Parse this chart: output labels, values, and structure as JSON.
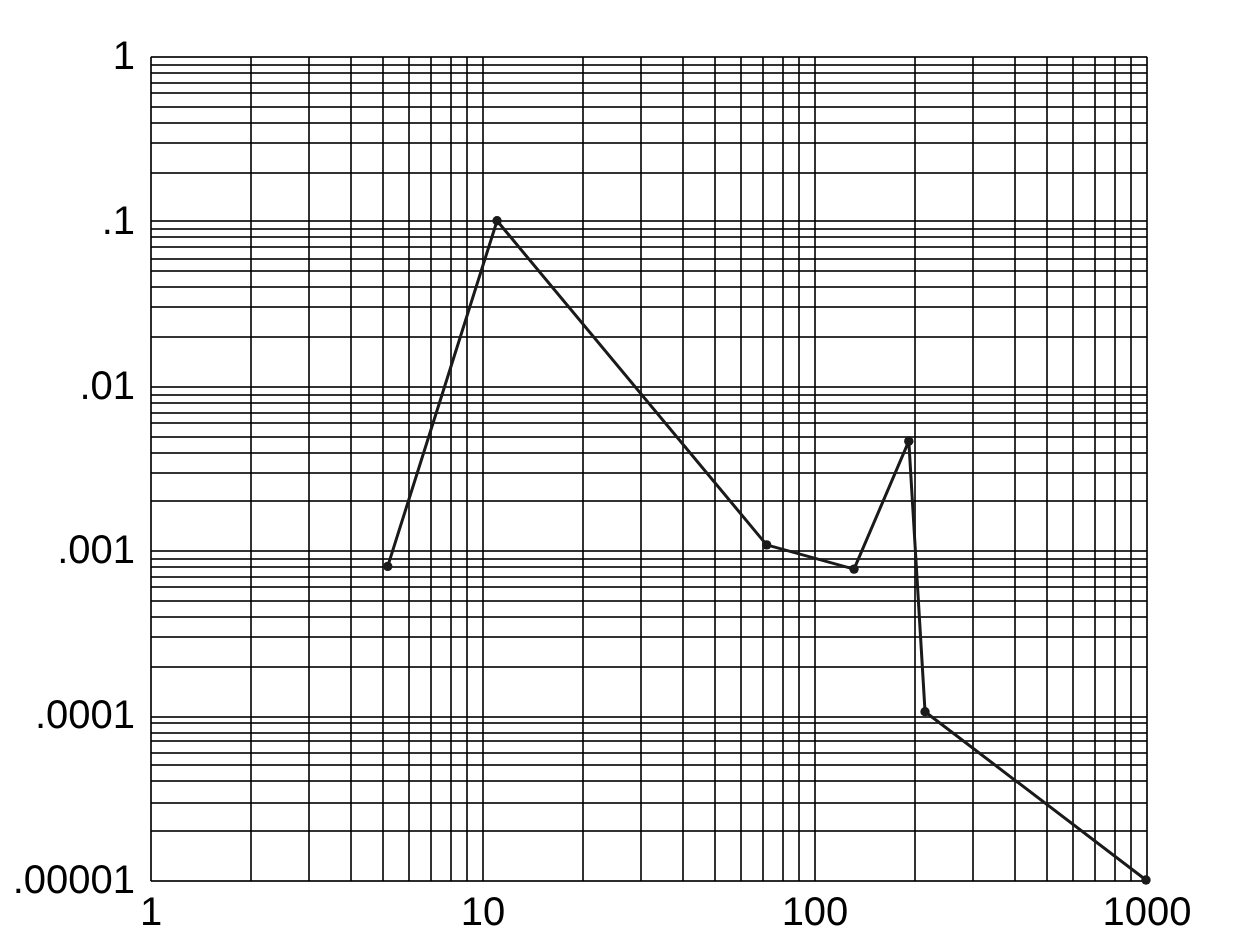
{
  "chart_data": {
    "type": "line",
    "log": "xy",
    "grid": true,
    "marker": "circle",
    "line_style": "solid",
    "x": [
      5.2,
      11.1,
      72,
      132,
      193,
      216,
      1000
    ],
    "series": [
      {
        "color": "#1a1a1a",
        "values": [
          0.0008,
          0.1,
          0.00108,
          0.00077,
          0.0046,
          0.000105,
          1e-05
        ]
      }
    ],
    "xlim": [
      1,
      1000
    ],
    "xticks": [
      1,
      {
        "value": 2,
        "label": null
      },
      {
        "value": 3,
        "label": null
      },
      {
        "value": 4,
        "label": null
      },
      {
        "value": 5,
        "label": null
      },
      {
        "value": 6,
        "label": null
      },
      {
        "value": 7,
        "label": null
      },
      {
        "value": 8,
        "label": null
      },
      {
        "value": 9,
        "label": null
      },
      10,
      {
        "value": 20,
        "label": null
      },
      {
        "value": 30,
        "label": null
      },
      {
        "value": 40,
        "label": null
      },
      {
        "value": 50,
        "label": null
      },
      {
        "value": 60,
        "label": null
      },
      {
        "value": 70,
        "label": null
      },
      {
        "value": 80,
        "label": null
      },
      {
        "value": 90,
        "label": null
      },
      100,
      {
        "value": 200,
        "label": null
      },
      {
        "value": 300,
        "label": null
      },
      {
        "value": 400,
        "label": null
      },
      {
        "value": 500,
        "label": null
      },
      {
        "value": 600,
        "label": null
      },
      {
        "value": 700,
        "label": null
      },
      {
        "value": 800,
        "label": null
      },
      {
        "value": 900,
        "label": null
      },
      1000
    ],
    "ylim": [
      1e-05,
      1
    ],
    "yticks": [
      {
        "value": 1e-05,
        "label": ".00001"
      },
      {
        "value": 2e-05,
        "label": null
      },
      {
        "value": 3e-05,
        "label": null
      },
      {
        "value": 4e-05,
        "label": null
      },
      {
        "value": 5e-05,
        "label": null
      },
      {
        "value": 6e-05,
        "label": null
      },
      {
        "value": 7e-05,
        "label": null
      },
      {
        "value": 8e-05,
        "label": null
      },
      {
        "value": 9e-05,
        "label": null
      },
      {
        "value": 0.0001,
        "label": ".0001"
      },
      {
        "value": 0.0002,
        "label": null
      },
      {
        "value": 0.0003,
        "label": null
      },
      {
        "value": 0.0004,
        "label": null
      },
      {
        "value": 0.0005,
        "label": null
      },
      {
        "value": 0.0006,
        "label": null
      },
      {
        "value": 0.0007,
        "label": null
      },
      {
        "value": 0.0008,
        "label": null
      },
      {
        "value": 0.0009,
        "label": null
      },
      {
        "value": 0.001,
        "label": ".001"
      },
      {
        "value": 0.002,
        "label": null
      },
      {
        "value": 0.003,
        "label": null
      },
      {
        "value": 0.004,
        "label": null
      },
      {
        "value": 0.005,
        "label": null
      },
      {
        "value": 0.006,
        "label": null
      },
      {
        "value": 0.007,
        "label": null
      },
      {
        "value": 0.008,
        "label": null
      },
      {
        "value": 0.009,
        "label": null
      },
      {
        "value": 0.01,
        "label": ".01"
      },
      {
        "value": 0.02,
        "label": null
      },
      {
        "value": 0.03,
        "label": null
      },
      {
        "value": 0.04,
        "label": null
      },
      {
        "value": 0.05,
        "label": null
      },
      {
        "value": 0.06,
        "label": null
      },
      {
        "value": 0.07,
        "label": null
      },
      {
        "value": 0.08,
        "label": null
      },
      {
        "value": 0.09,
        "label": null
      },
      {
        "value": 0.1,
        "label": ".1"
      },
      {
        "value": 0.2,
        "label": null
      },
      {
        "value": 0.3,
        "label": null
      },
      {
        "value": 0.4,
        "label": null
      },
      {
        "value": 0.5,
        "label": null
      },
      {
        "value": 0.6,
        "label": null
      },
      {
        "value": 0.7,
        "label": null
      },
      {
        "value": 0.8,
        "label": null
      },
      {
        "value": 0.9,
        "label": null
      },
      1
    ]
  }
}
